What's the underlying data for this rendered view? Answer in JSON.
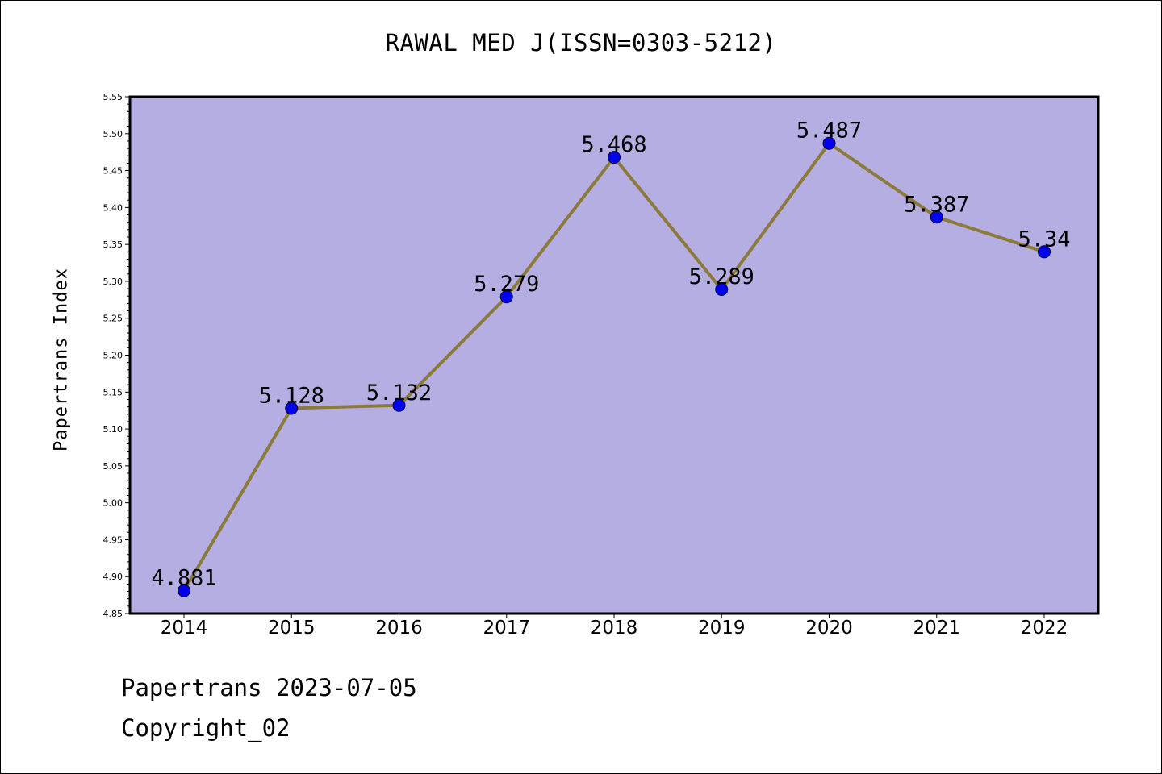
{
  "chart_data": {
    "type": "line",
    "title": "RAWAL MED J(ISSN=0303-5212)",
    "xlabel": "",
    "ylabel": "Papertrans Index",
    "categories": [
      "2014",
      "2015",
      "2016",
      "2017",
      "2018",
      "2019",
      "2020",
      "2021",
      "2022"
    ],
    "series": [
      {
        "values": [
          4.881,
          5.128,
          5.132,
          5.279,
          5.468,
          5.289,
          5.487,
          5.387,
          5.34
        ],
        "labels": [
          "4.881",
          "5.128",
          "5.132",
          "5.279",
          "5.468",
          "5.289",
          "5.487",
          "5.387",
          "5.34"
        ]
      }
    ],
    "ylim": [
      4.85,
      5.55
    ],
    "yticks": [
      "4.85",
      "4.90",
      "4.95",
      "5.00",
      "5.05",
      "5.10",
      "5.15",
      "5.20",
      "5.25",
      "5.30",
      "5.35",
      "5.40",
      "5.45",
      "5.50",
      "5.55"
    ],
    "grid": false,
    "legend": "none",
    "colors": {
      "plot_background": "#b5aee2",
      "line": "#8b7a3a",
      "marker": "#0000ee"
    }
  },
  "footer": {
    "line1": "Papertrans 2023-07-05",
    "line2": "Copyright_02"
  }
}
